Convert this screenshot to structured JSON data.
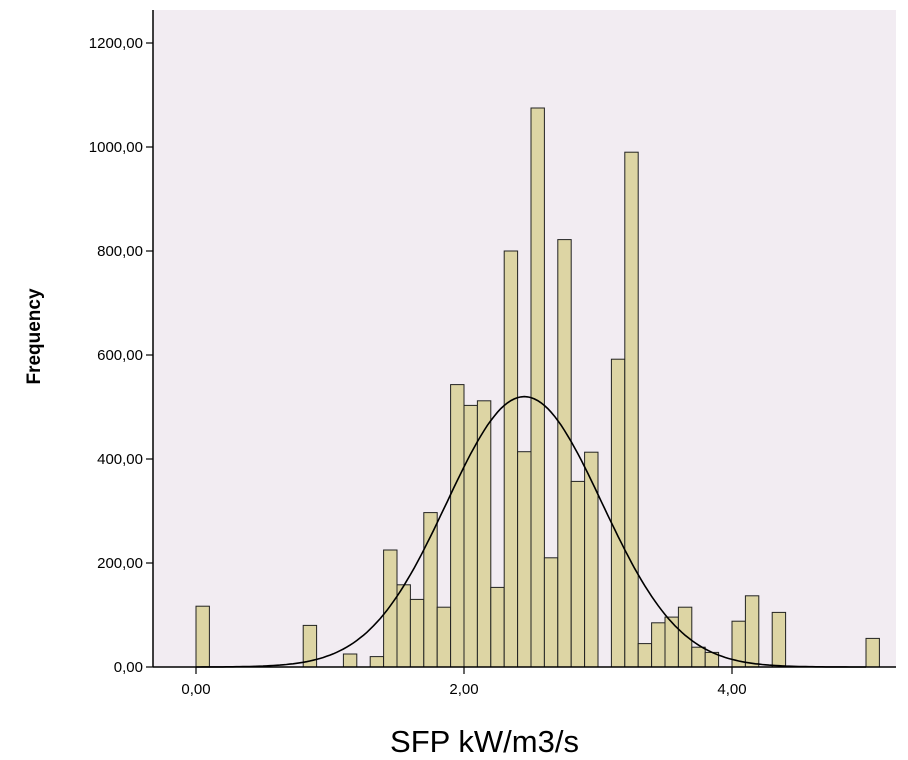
{
  "chart_data": {
    "type": "bar",
    "subtype": "histogram",
    "title": "",
    "xlabel": "SFP kW/m3/s",
    "ylabel": "Frequency",
    "xlim": [
      -0.25,
      5.1
    ],
    "ylim": [
      0,
      1200
    ],
    "bin_width": 0.1,
    "x_ticks": [
      {
        "value": 0,
        "label": "0,00"
      },
      {
        "value": 2,
        "label": "2,00"
      },
      {
        "value": 4,
        "label": "4,00"
      }
    ],
    "y_ticks": [
      {
        "value": 0,
        "label": "0,00"
      },
      {
        "value": 200,
        "label": "200,00"
      },
      {
        "value": 400,
        "label": "400,00"
      },
      {
        "value": 600,
        "label": "600,00"
      },
      {
        "value": 800,
        "label": "800,00"
      },
      {
        "value": 1000,
        "label": "1000,00"
      },
      {
        "value": 1200,
        "label": "1200,00"
      }
    ],
    "bins": [
      {
        "x": 0.05,
        "value": 117
      },
      {
        "x": 0.85,
        "value": 80
      },
      {
        "x": 1.15,
        "value": 25
      },
      {
        "x": 1.35,
        "value": 20
      },
      {
        "x": 1.45,
        "value": 225
      },
      {
        "x": 1.55,
        "value": 158
      },
      {
        "x": 1.65,
        "value": 130
      },
      {
        "x": 1.75,
        "value": 297
      },
      {
        "x": 1.85,
        "value": 115
      },
      {
        "x": 1.95,
        "value": 543
      },
      {
        "x": 2.05,
        "value": 503
      },
      {
        "x": 2.15,
        "value": 512
      },
      {
        "x": 2.25,
        "value": 153
      },
      {
        "x": 2.35,
        "value": 800
      },
      {
        "x": 2.45,
        "value": 414
      },
      {
        "x": 2.55,
        "value": 1075
      },
      {
        "x": 2.65,
        "value": 210
      },
      {
        "x": 2.75,
        "value": 822
      },
      {
        "x": 2.85,
        "value": 357
      },
      {
        "x": 2.95,
        "value": 413
      },
      {
        "x": 3.15,
        "value": 592
      },
      {
        "x": 3.25,
        "value": 990
      },
      {
        "x": 3.35,
        "value": 45
      },
      {
        "x": 3.45,
        "value": 85
      },
      {
        "x": 3.55,
        "value": 96
      },
      {
        "x": 3.65,
        "value": 115
      },
      {
        "x": 3.75,
        "value": 38
      },
      {
        "x": 3.85,
        "value": 28
      },
      {
        "x": 4.05,
        "value": 88
      },
      {
        "x": 4.15,
        "value": 137
      },
      {
        "x": 4.35,
        "value": 105
      },
      {
        "x": 5.05,
        "value": 55
      }
    ],
    "normal_curve": {
      "mean": 2.45,
      "std_dev": 0.58,
      "peak": 520
    },
    "colors": {
      "plot_background": "#f2ecf2",
      "bar_fill": "#ddd5a4",
      "bar_stroke": "#222222",
      "curve": "#000000",
      "axis": "#000000"
    },
    "grid": false,
    "legend": "none"
  }
}
